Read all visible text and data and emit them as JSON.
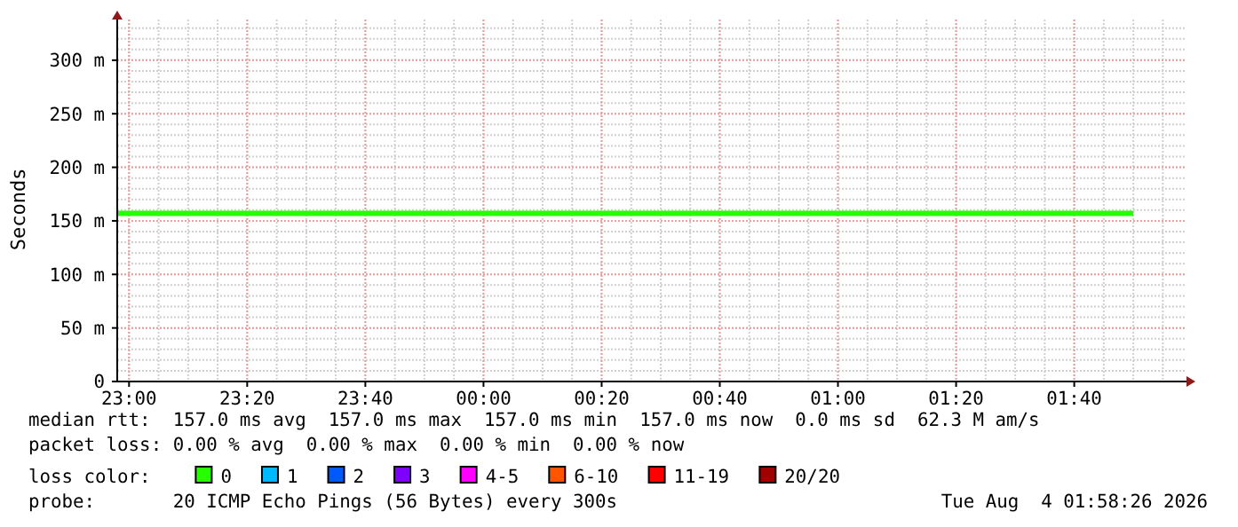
{
  "chart_data": {
    "type": "line",
    "ylabel": "Seconds",
    "x": [
      "2026-08-03T22:58",
      "2026-08-04T01:50"
    ],
    "xlim": [
      "2026-08-03T22:58",
      "2026-08-04T01:59"
    ],
    "xticks": [
      {
        "value": "2026-08-03T23:00",
        "label": "23:00"
      },
      {
        "value": "2026-08-03T23:20",
        "label": "23:20"
      },
      {
        "value": "2026-08-03T23:40",
        "label": "23:40"
      },
      {
        "value": "2026-08-04T00:00",
        "label": "00:00"
      },
      {
        "value": "2026-08-04T00:20",
        "label": "00:20"
      },
      {
        "value": "2026-08-04T00:40",
        "label": "00:40"
      },
      {
        "value": "2026-08-04T01:00",
        "label": "01:00"
      },
      {
        "value": "2026-08-04T01:20",
        "label": "01:20"
      },
      {
        "value": "2026-08-04T01:40",
        "label": "01:40"
      }
    ],
    "ylim": [
      0,
      338
    ],
    "yticks": [
      0,
      {
        "value": 50,
        "label": "50 m"
      },
      {
        "value": 100,
        "label": "100 m"
      },
      {
        "value": 150,
        "label": "150 m"
      },
      {
        "value": 200,
        "label": "200 m"
      },
      {
        "value": 250,
        "label": "250 m"
      },
      {
        "value": 300,
        "label": "300 m"
      }
    ],
    "grid": true,
    "legend": "bottom",
    "legend_title": "loss color:",
    "marker": "none",
    "line_style": "solid",
    "series": [
      {
        "name": "0",
        "color": "#26ff00",
        "values": [
          157,
          157
        ]
      },
      {
        "name": "1",
        "color": "#00b8ff",
        "values": [
          null,
          null
        ]
      },
      {
        "name": "2",
        "color": "#0059ff",
        "values": [
          null,
          null
        ]
      },
      {
        "name": "3",
        "color": "#7e00ff",
        "values": [
          null,
          null
        ]
      },
      {
        "name": "4-5",
        "color": "#ff00ff",
        "values": [
          null,
          null
        ]
      },
      {
        "name": "6-10",
        "color": "#ff5500",
        "values": [
          null,
          null
        ]
      },
      {
        "name": "11-19",
        "color": "#ff0000",
        "values": [
          null,
          null
        ]
      },
      {
        "name": "20/20",
        "color": "#a10000",
        "values": [
          null,
          null
        ]
      }
    ],
    "annotations": [
      "median rtt:  157.0 ms avg  157.0 ms max  157.0 ms min  157.0 ms now  0.0 ms sd  62.3 M am/s",
      "packet loss: 0.00 % avg  0.00 % max  0.00 % min  0.00 % now",
      "probe:       20 ICMP Echo Pings (56 Bytes) every 300s",
      "Tue Aug  4 01:58:26 2026"
    ]
  }
}
